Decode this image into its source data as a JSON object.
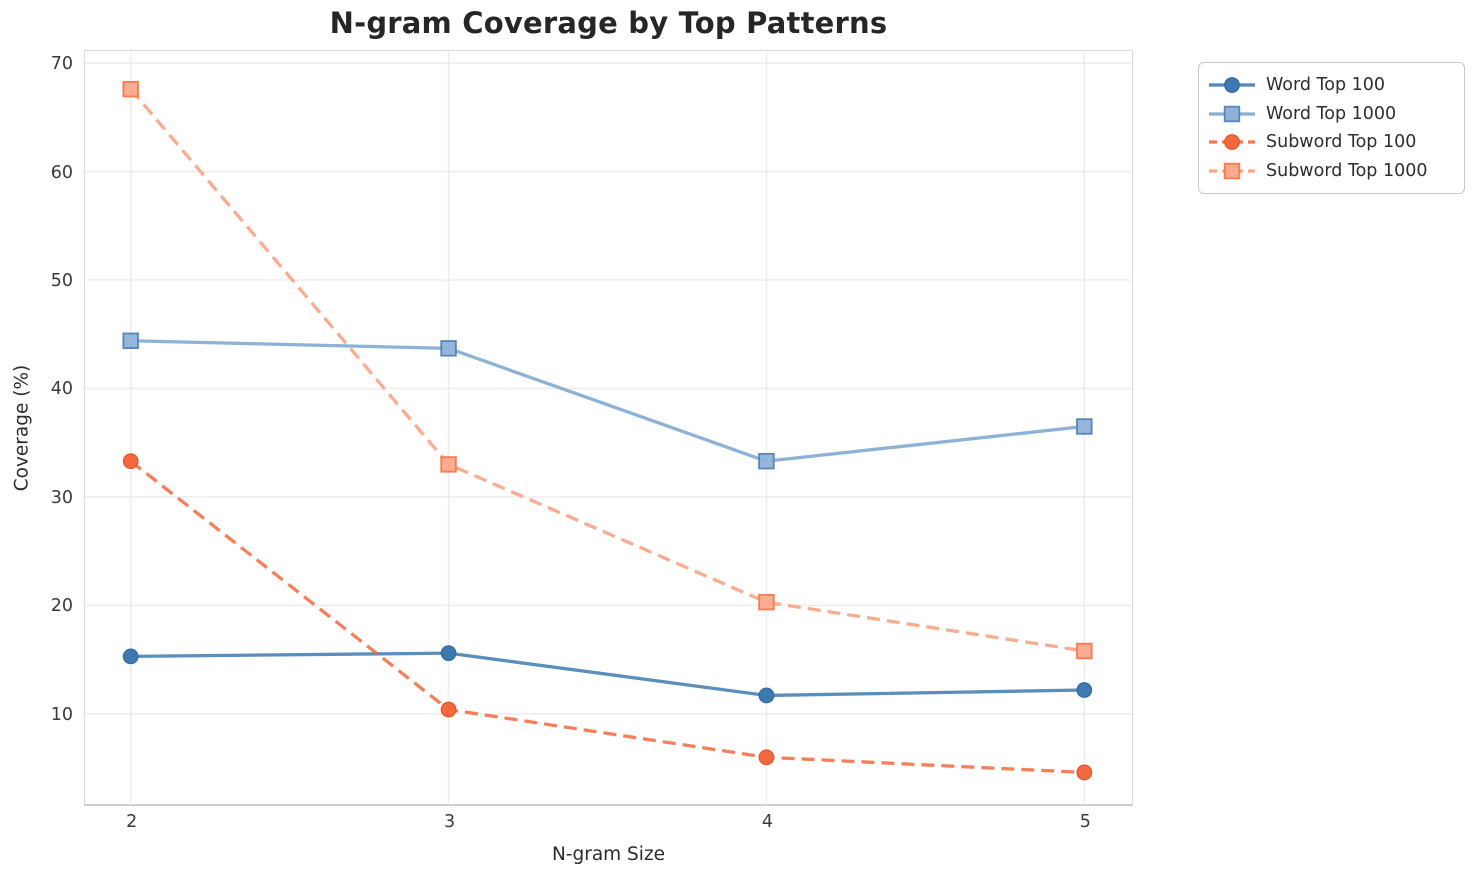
{
  "title": "N-gram Coverage by Top Patterns",
  "chart_data": {
    "type": "line",
    "title": "N-gram Coverage by Top Patterns",
    "xlabel": "N-gram Size",
    "ylabel": "Coverage (%)",
    "x": [
      2,
      3,
      4,
      5
    ],
    "x_tick_labels": [
      "2",
      "3",
      "4",
      "5"
    ],
    "y_ticks": [
      10,
      20,
      30,
      40,
      50,
      60,
      70
    ],
    "xlim": [
      1.85,
      5.15
    ],
    "ylim": [
      1.6,
      71.3
    ],
    "grid": true,
    "grid_color": "#ececec",
    "legend_position": "outside-upper-right",
    "series": [
      {
        "name": "Word Top 100",
        "values": [
          15.3,
          15.6,
          11.7,
          12.2
        ],
        "color": "#3d7ab2",
        "marker": "circle",
        "marker_fill": "#3d7ab2",
        "marker_edge": "#35699c",
        "dash": false
      },
      {
        "name": "Word Top 1000",
        "values": [
          44.4,
          43.7,
          33.3,
          36.5
        ],
        "color": "#7aa5cf",
        "marker": "square",
        "marker_fill": "#8fb3d9",
        "marker_edge": "#5585bb",
        "dash": false
      },
      {
        "name": "Subword Top 100",
        "values": [
          33.3,
          10.4,
          6.0,
          4.6
        ],
        "color": "#f3683d",
        "marker": "circle",
        "marker_fill": "#f3683d",
        "marker_edge": "#e25529",
        "dash": true
      },
      {
        "name": "Subword Top 1000",
        "values": [
          67.6,
          33.0,
          20.3,
          15.8
        ],
        "color": "#fa9d7c",
        "marker": "square",
        "marker_fill": "#fba98b",
        "marker_edge": "#f87b50",
        "dash": true
      }
    ]
  }
}
